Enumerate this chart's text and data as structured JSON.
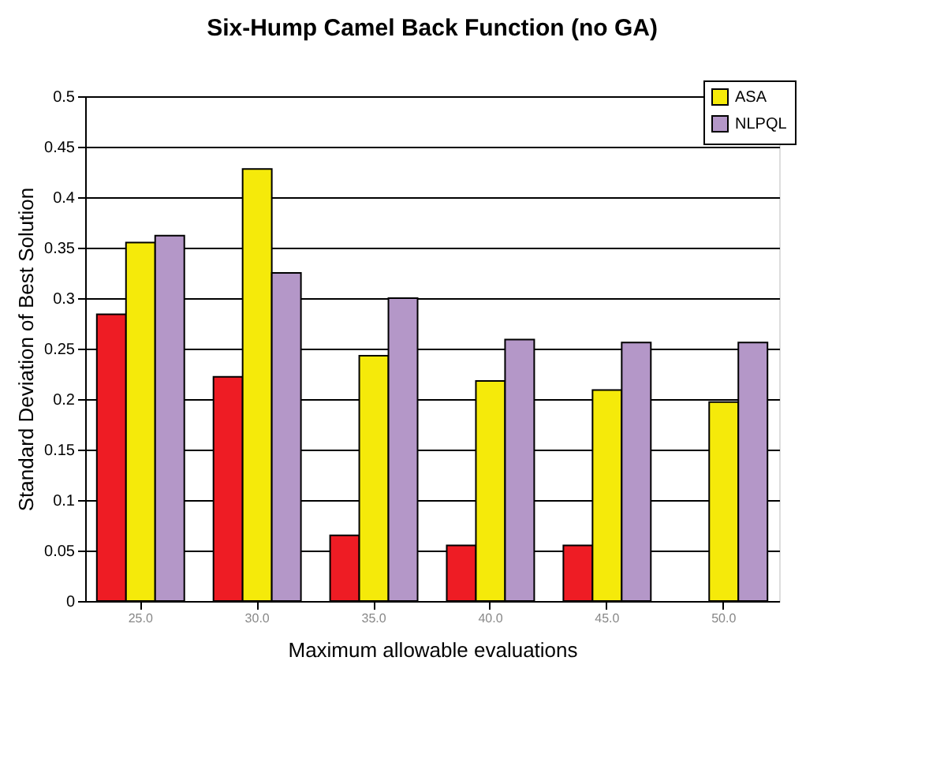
{
  "chart_data": {
    "type": "bar",
    "title": "Six-Hump Camel Back Function (no GA)",
    "xlabel": "Maximum allowable evaluations",
    "ylabel": "Standard Deviation of Best Solution",
    "categories": [
      "25.0",
      "30.0",
      "35.0",
      "40.0",
      "45.0",
      "50.0"
    ],
    "series": [
      {
        "color": "#ee1c24",
        "values": [
          0.284,
          0.222,
          0.065,
          0.055,
          0.055,
          null
        ]
      },
      {
        "name": "ASA",
        "color": "#f5ea0a",
        "values": [
          0.355,
          0.428,
          0.243,
          0.218,
          0.209,
          0.197
        ]
      },
      {
        "name": "NLPQL",
        "color": "#b497c8",
        "values": [
          0.362,
          0.325,
          0.3,
          0.259,
          0.256,
          0.256
        ]
      }
    ],
    "ylim": [
      0,
      0.5
    ],
    "yticks": [
      0,
      0.05,
      0.1,
      0.15,
      0.2,
      0.25,
      0.3,
      0.35,
      0.4,
      0.45,
      0.5
    ],
    "grid": "y",
    "legend": "top right"
  }
}
